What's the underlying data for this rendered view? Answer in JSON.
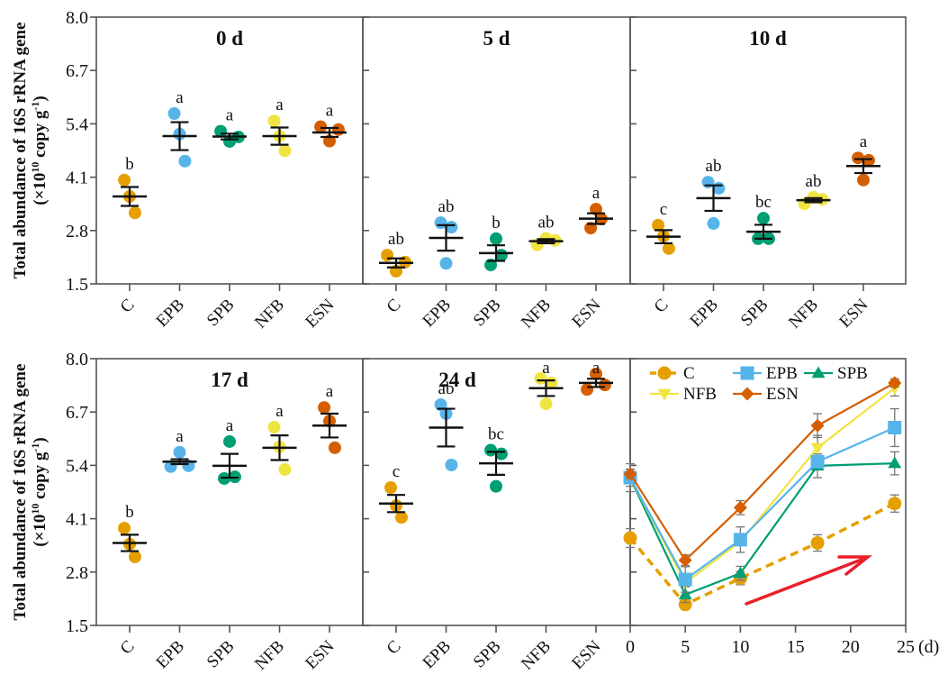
{
  "figure": {
    "ylabel_line1": "Total abundance of 16S rRNA gene",
    "ylabel_line2_prefix": "(×10",
    "ylabel_line2_exp": "10",
    "ylabel_line2_mid": " copy g",
    "ylabel_line2_exp2": "-1",
    "ylabel_line2_suffix": ")"
  },
  "colors": {
    "C": "#E69F00",
    "EPB": "#56B4E9",
    "SPB": "#009E73",
    "NFB": "#F0E442",
    "ESN": "#D55E00",
    "arrow": "#E8202A",
    "errorbar": "#111111",
    "line_errorbar": "#777777"
  },
  "chart_data": [
    {
      "type": "scatter",
      "title": "0 d",
      "categories": [
        "C",
        "EPB",
        "SPB",
        "NFB",
        "ESN"
      ],
      "ylabel": "Total abundance of 16S rRNA gene (×10^10 copy g^-1)",
      "ylim": [
        1.5,
        8.0
      ],
      "yticks": [
        "1.5",
        "2.8",
        "4.1",
        "5.4",
        "6.7",
        "8.0"
      ],
      "groups": [
        {
          "name": "C",
          "points": [
            4.03,
            3.63,
            3.23
          ],
          "mean": 3.63,
          "se": 0.23,
          "letter": "b"
        },
        {
          "name": "EPB",
          "points": [
            5.65,
            5.15,
            4.49
          ],
          "mean": 5.1,
          "se": 0.34,
          "letter": "a"
        },
        {
          "name": "SPB",
          "points": [
            5.22,
            4.97,
            5.08
          ],
          "mean": 5.09,
          "se": 0.07,
          "letter": "a"
        },
        {
          "name": "NFB",
          "points": [
            5.47,
            5.1,
            4.74
          ],
          "mean": 5.1,
          "se": 0.21,
          "letter": "a"
        },
        {
          "name": "ESN",
          "points": [
            5.33,
            4.98,
            5.26
          ],
          "mean": 5.19,
          "se": 0.11,
          "letter": "a"
        }
      ]
    },
    {
      "type": "scatter",
      "title": "5 d",
      "categories": [
        "C",
        "EPB",
        "SPB",
        "NFB",
        "ESN"
      ],
      "ylim": [
        1.5,
        8.0
      ],
      "groups": [
        {
          "name": "C",
          "points": [
            2.2,
            1.81,
            2.03
          ],
          "mean": 2.01,
          "se": 0.11,
          "letter": "ab"
        },
        {
          "name": "EPB",
          "points": [
            2.99,
            2.0,
            2.88
          ],
          "mean": 2.62,
          "se": 0.31,
          "letter": "ab"
        },
        {
          "name": "SPB",
          "points": [
            1.96,
            2.6,
            2.2
          ],
          "mean": 2.25,
          "se": 0.19,
          "letter": "b"
        },
        {
          "name": "NFB",
          "points": [
            2.45,
            2.61,
            2.56
          ],
          "mean": 2.54,
          "se": 0.05,
          "letter": "ab"
        },
        {
          "name": "ESN",
          "points": [
            2.86,
            3.32,
            3.08
          ],
          "mean": 3.09,
          "se": 0.13,
          "letter": "a"
        }
      ]
    },
    {
      "type": "scatter",
      "title": "10 d",
      "categories": [
        "C",
        "EPB",
        "SPB",
        "NFB",
        "ESN"
      ],
      "ylim": [
        1.5,
        8.0
      ],
      "groups": [
        {
          "name": "C",
          "points": [
            2.93,
            2.66,
            2.36
          ],
          "mean": 2.65,
          "se": 0.16,
          "letter": "c"
        },
        {
          "name": "EPB",
          "points": [
            3.98,
            2.97,
            3.83
          ],
          "mean": 3.59,
          "se": 0.31,
          "letter": "ab"
        },
        {
          "name": "SPB",
          "points": [
            2.6,
            3.1,
            2.6
          ],
          "mean": 2.77,
          "se": 0.17,
          "letter": "bc"
        },
        {
          "name": "NFB",
          "points": [
            3.45,
            3.61,
            3.56
          ],
          "mean": 3.54,
          "se": 0.05,
          "letter": "ab"
        },
        {
          "name": "ESN",
          "points": [
            4.57,
            4.03,
            4.51
          ],
          "mean": 4.37,
          "se": 0.17,
          "letter": "a"
        }
      ]
    },
    {
      "type": "scatter",
      "title": "17 d",
      "categories": [
        "C",
        "EPB",
        "SPB",
        "NFB",
        "ESN"
      ],
      "ylim": [
        1.5,
        8.0
      ],
      "yticks": [
        "1.5",
        "2.8",
        "4.1",
        "5.4",
        "6.7",
        "8.0"
      ],
      "groups": [
        {
          "name": "C",
          "points": [
            3.87,
            3.48,
            3.17
          ],
          "mean": 3.51,
          "se": 0.2,
          "letter": "b"
        },
        {
          "name": "EPB",
          "points": [
            5.37,
            5.72,
            5.39
          ],
          "mean": 5.49,
          "se": 0.06,
          "letter": "a"
        },
        {
          "name": "SPB",
          "points": [
            5.08,
            5.98,
            5.12
          ],
          "mean": 5.39,
          "se": 0.29,
          "letter": "a"
        },
        {
          "name": "NFB",
          "points": [
            6.33,
            5.85,
            5.3
          ],
          "mean": 5.83,
          "se": 0.3,
          "letter": "a"
        },
        {
          "name": "ESN",
          "points": [
            6.81,
            6.48,
            5.83
          ],
          "mean": 6.37,
          "se": 0.29,
          "letter": "a"
        }
      ]
    },
    {
      "type": "scatter",
      "title": "24 d",
      "categories": [
        "C",
        "EPB",
        "SPB",
        "NFB",
        "ESN"
      ],
      "ylim": [
        1.5,
        8.0
      ],
      "groups": [
        {
          "name": "C",
          "points": [
            4.86,
            4.42,
            4.13
          ],
          "mean": 4.47,
          "se": 0.21,
          "letter": "c"
        },
        {
          "name": "EPB",
          "points": [
            6.88,
            6.66,
            5.41
          ],
          "mean": 6.32,
          "se": 0.46,
          "letter": "ab"
        },
        {
          "name": "SPB",
          "points": [
            5.77,
            4.89,
            5.68
          ],
          "mean": 5.45,
          "se": 0.28,
          "letter": "bc"
        },
        {
          "name": "NFB",
          "points": [
            7.52,
            6.9,
            7.41
          ],
          "mean": 7.28,
          "se": 0.19,
          "letter": "a"
        },
        {
          "name": "ESN",
          "points": [
            7.25,
            7.63,
            7.36
          ],
          "mean": 7.41,
          "se": 0.1,
          "letter": "a"
        }
      ]
    },
    {
      "type": "line",
      "title": "",
      "xlabel": "(d)",
      "x": [
        0,
        5,
        10,
        17,
        24
      ],
      "xlim": [
        0,
        25
      ],
      "xticks": [
        "0",
        "5",
        "10",
        "15",
        "20",
        "25"
      ],
      "ylim": [
        1.5,
        8.0
      ],
      "legend": "top-left",
      "series": [
        {
          "name": "C",
          "marker": "circle",
          "dashed": true,
          "values": [
            3.63,
            2.01,
            2.65,
            3.51,
            4.47
          ],
          "se": [
            0.23,
            0.11,
            0.16,
            0.2,
            0.21
          ]
        },
        {
          "name": "EPB",
          "marker": "square",
          "dashed": false,
          "values": [
            5.1,
            2.62,
            3.59,
            5.49,
            6.32
          ],
          "se": [
            0.34,
            0.31,
            0.31,
            0.06,
            0.46
          ]
        },
        {
          "name": "SPB",
          "marker": "triangle-up",
          "dashed": false,
          "values": [
            5.09,
            2.25,
            2.77,
            5.39,
            5.45
          ],
          "se": [
            0.07,
            0.19,
            0.17,
            0.29,
            0.28
          ]
        },
        {
          "name": "NFB",
          "marker": "triangle-down",
          "dashed": false,
          "values": [
            5.1,
            2.54,
            3.54,
            5.83,
            7.28
          ],
          "se": [
            0.21,
            0.05,
            0.05,
            0.3,
            0.19
          ]
        },
        {
          "name": "ESN",
          "marker": "diamond",
          "dashed": false,
          "values": [
            5.19,
            3.09,
            4.37,
            6.37,
            7.41
          ],
          "se": [
            0.11,
            0.13,
            0.17,
            0.29,
            0.1
          ]
        }
      ],
      "annotation": "red upward arrow indicating increasing trend"
    }
  ]
}
